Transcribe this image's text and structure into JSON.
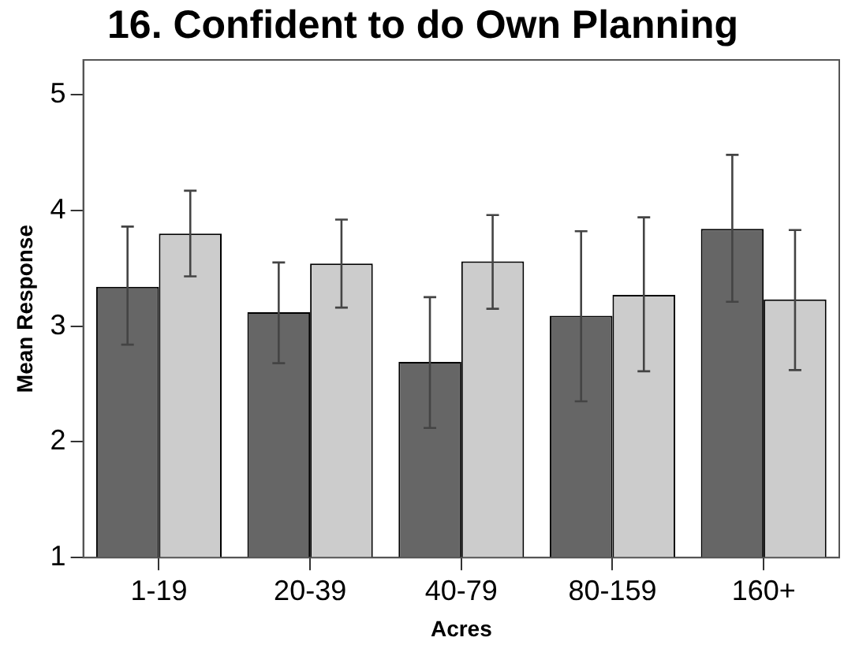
{
  "chart_data": {
    "type": "bar",
    "title": "16. Confident to do Own Planning",
    "xlabel": "Acres",
    "ylabel": "Mean Response",
    "categories": [
      "1-19",
      "20-39",
      "40-79",
      "80-159",
      "160+"
    ],
    "series": [
      {
        "color": "#666666",
        "values": [
          3.34,
          3.12,
          2.69,
          3.09,
          3.84
        ],
        "errors": [
          [
            2.84,
            3.86
          ],
          [
            2.68,
            3.55
          ],
          [
            2.12,
            3.25
          ],
          [
            2.35,
            3.82
          ],
          [
            3.21,
            4.48
          ]
        ]
      },
      {
        "color": "#cccccc",
        "values": [
          3.8,
          3.54,
          3.56,
          3.27,
          3.23
        ],
        "errors": [
          [
            3.43,
            4.17
          ],
          [
            3.16,
            3.92
          ],
          [
            3.15,
            3.96
          ],
          [
            2.61,
            3.94
          ],
          [
            2.62,
            3.83
          ]
        ]
      }
    ],
    "ylim": [
      1,
      5.3
    ],
    "yticks": [
      1,
      2,
      3,
      4,
      5
    ],
    "grid": false,
    "legend": false
  }
}
